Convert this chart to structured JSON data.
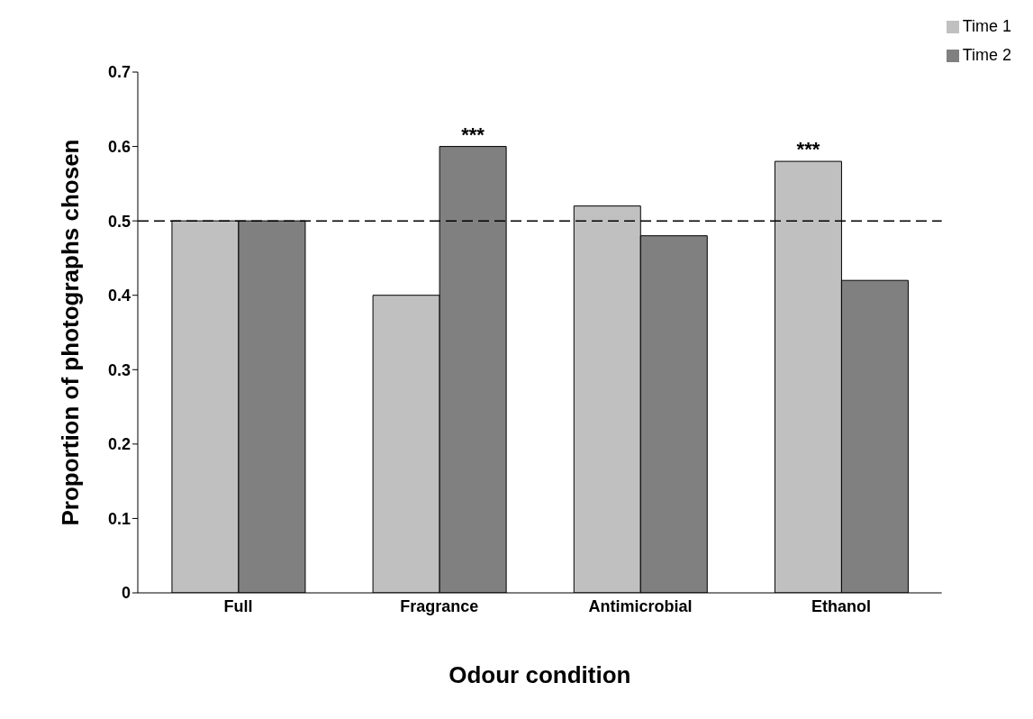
{
  "chart_data": {
    "type": "bar",
    "xlabel": "Odour condition",
    "ylabel": "Proportion of photographs chosen",
    "categories": [
      "Full",
      "Fragrance",
      "Antimicrobial",
      "Ethanol"
    ],
    "series": [
      {
        "name": "Time 1",
        "color": "#c0c0c0",
        "values": [
          0.5,
          0.4,
          0.52,
          0.58
        ]
      },
      {
        "name": "Time 2",
        "color": "#808080",
        "values": [
          0.5,
          0.6,
          0.48,
          0.42
        ]
      }
    ],
    "ylim": [
      0,
      0.7
    ],
    "yticks": [
      0,
      0.1,
      0.2,
      0.3,
      0.4,
      0.5,
      0.6,
      0.7
    ],
    "ref_lines": [
      {
        "axis": "y",
        "value": 0.5,
        "line_style": "dashed",
        "color": "#000000"
      }
    ],
    "annotations": [
      {
        "text": "***",
        "x": "Fragrance",
        "y": 0.6
      },
      {
        "text": "***",
        "x": "Ethanol",
        "y": 0.58
      }
    ],
    "legend": "top right",
    "grid": false
  }
}
